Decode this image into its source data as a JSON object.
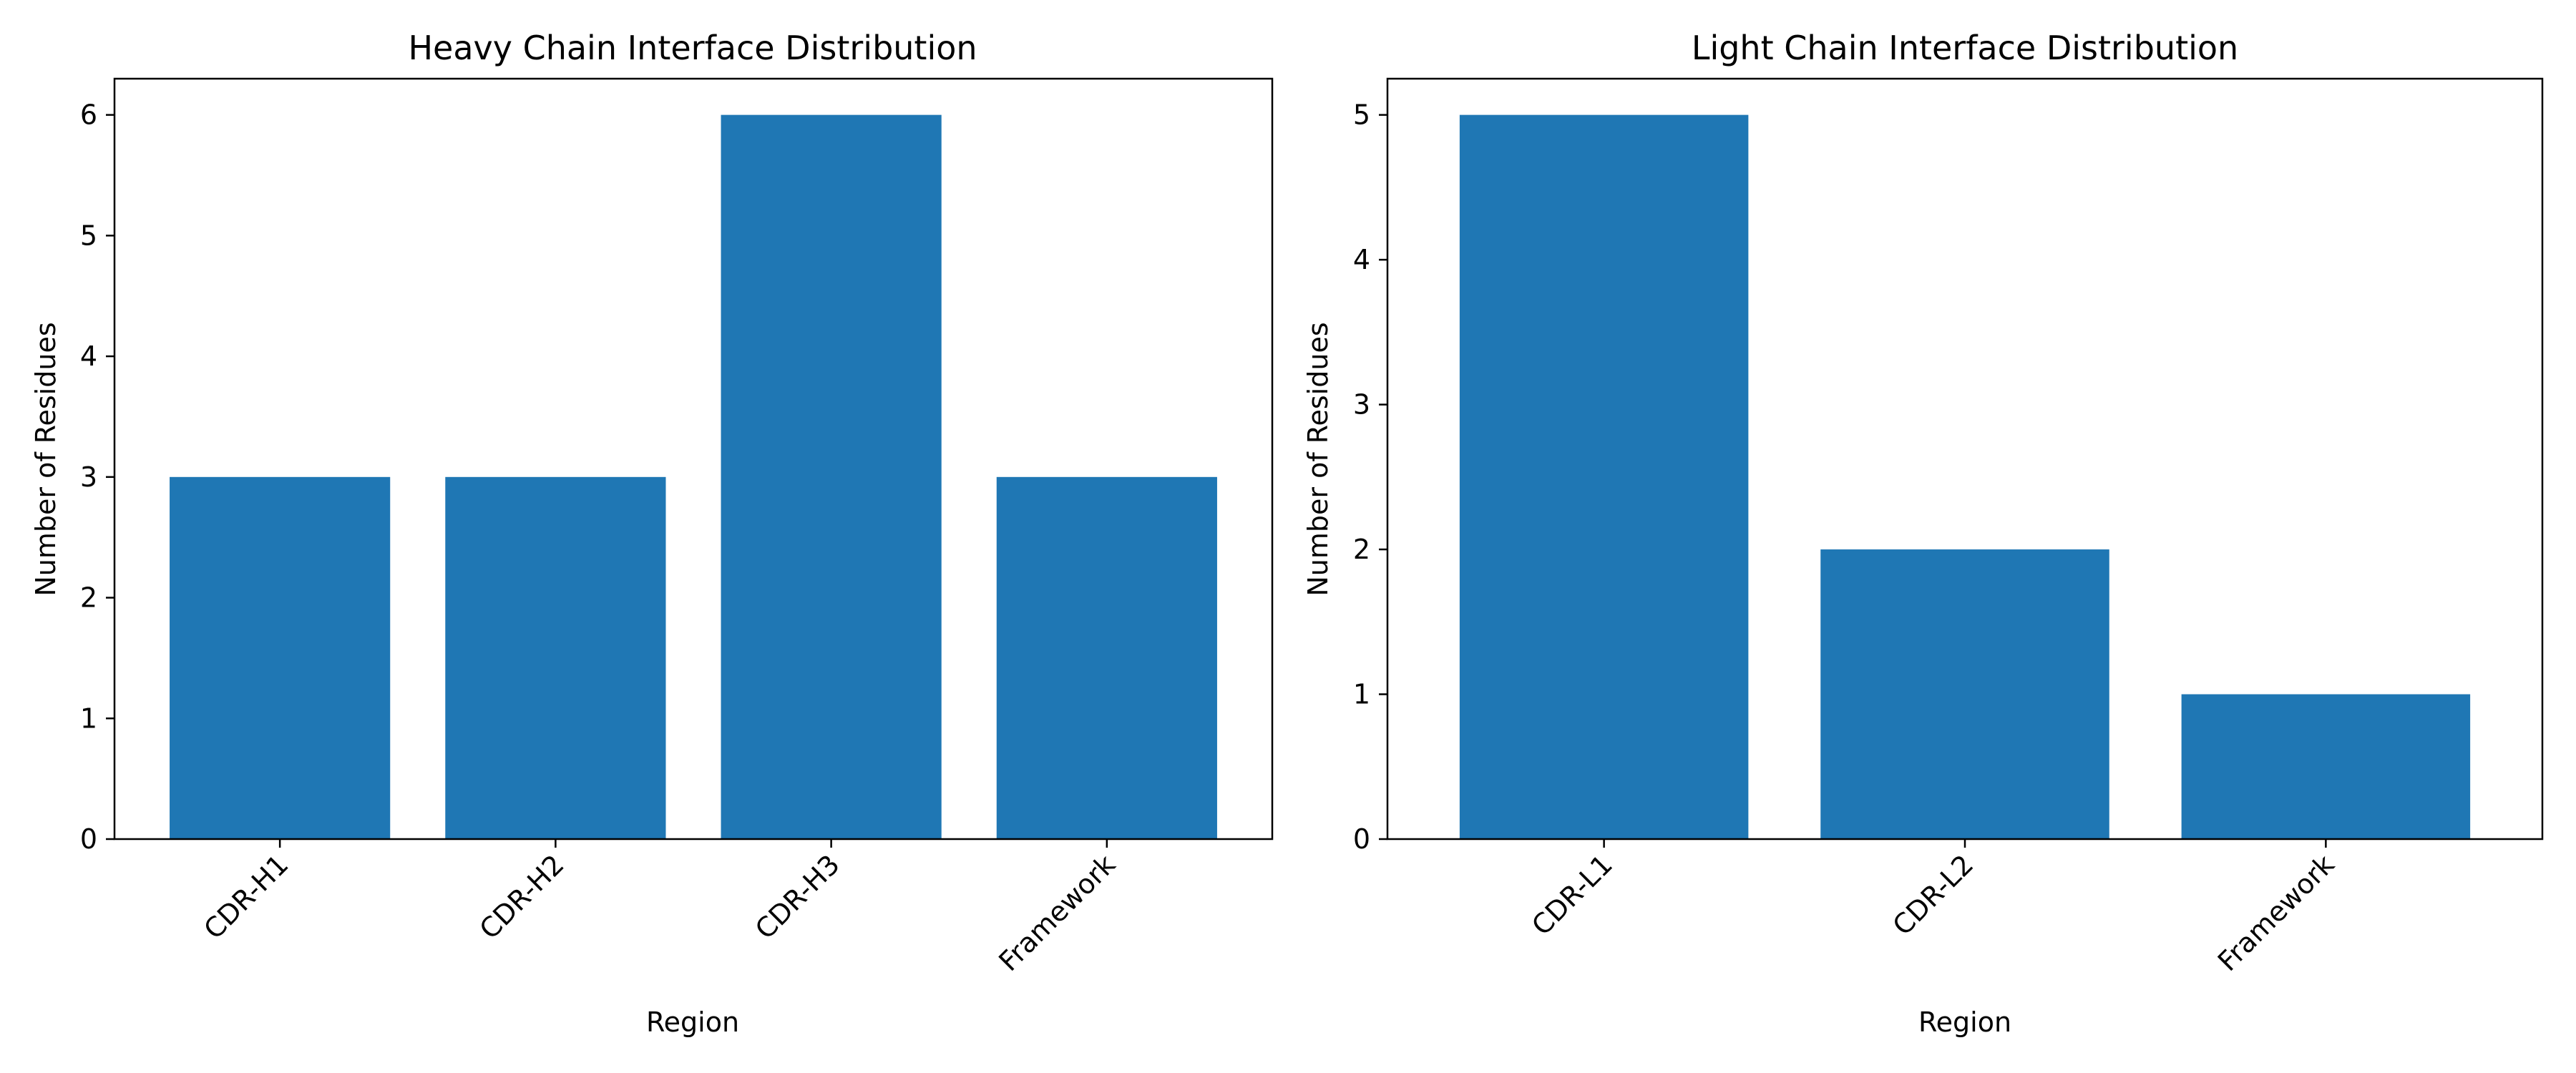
{
  "chart_data": [
    {
      "type": "bar",
      "title": "Heavy Chain Interface Distribution",
      "xlabel": "Region",
      "ylabel": "Number of Residues",
      "categories": [
        "CDR-H1",
        "CDR-H2",
        "CDR-H3",
        "Framework"
      ],
      "values": [
        3,
        3,
        6,
        3
      ],
      "yticks": [
        0,
        1,
        2,
        3,
        4,
        5,
        6
      ],
      "ylim": [
        0,
        6.3
      ],
      "grid": false,
      "color": "#1f77b4"
    },
    {
      "type": "bar",
      "title": "Light Chain Interface Distribution",
      "xlabel": "Region",
      "ylabel": "Number of Residues",
      "categories": [
        "CDR-L1",
        "CDR-L2",
        "Framework"
      ],
      "values": [
        5,
        2,
        1
      ],
      "yticks": [
        0,
        1,
        2,
        3,
        4,
        5
      ],
      "ylim": [
        0,
        5.25
      ],
      "grid": false,
      "color": "#1f77b4"
    }
  ]
}
